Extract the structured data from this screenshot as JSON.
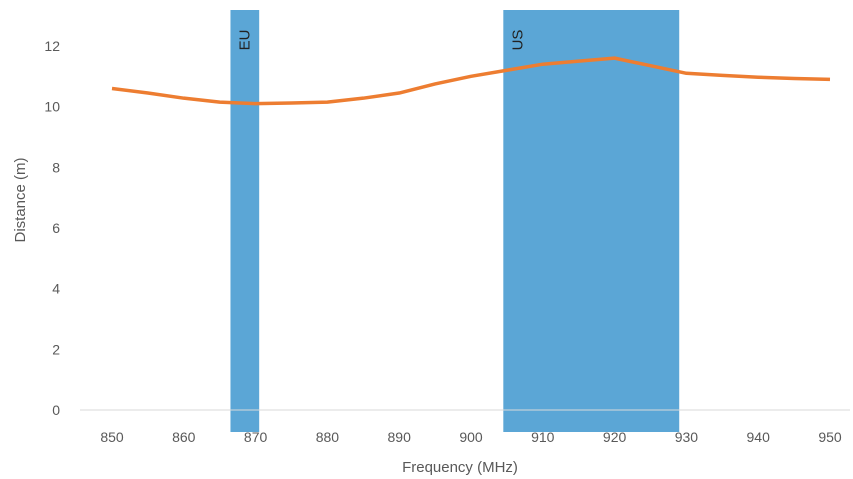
{
  "chart_data": {
    "type": "line",
    "title": "",
    "xlabel": "Frequency (MHz)",
    "ylabel": "Distance (m)",
    "xlim": [
      845,
      955
    ],
    "ylim": [
      0,
      13
    ],
    "x_ticks": [
      850,
      860,
      870,
      880,
      890,
      900,
      910,
      920,
      930,
      940,
      950
    ],
    "y_ticks": [
      0,
      2,
      4,
      6,
      8,
      10,
      12
    ],
    "grid": false,
    "legend": "none",
    "series": [
      {
        "color": "#ED7D31",
        "points": [
          [
            850,
            10.6
          ],
          [
            855,
            10.45
          ],
          [
            860,
            10.28
          ],
          [
            865,
            10.15
          ],
          [
            870,
            10.1
          ],
          [
            875,
            10.12
          ],
          [
            880,
            10.15
          ],
          [
            885,
            10.28
          ],
          [
            890,
            10.45
          ],
          [
            895,
            10.75
          ],
          [
            900,
            11.0
          ],
          [
            905,
            11.2
          ],
          [
            910,
            11.4
          ],
          [
            915,
            11.5
          ],
          [
            920,
            11.6
          ],
          [
            925,
            11.35
          ],
          [
            930,
            11.1
          ],
          [
            935,
            11.03
          ],
          [
            940,
            10.97
          ],
          [
            945,
            10.93
          ],
          [
            950,
            10.9
          ]
        ]
      }
    ],
    "bands": [
      {
        "label": "EU",
        "x_start": 866.5,
        "x_end": 870.5,
        "color": "#5BA6D6"
      },
      {
        "label": "US",
        "x_start": 904.5,
        "x_end": 929,
        "color": "#5BA6D6"
      }
    ]
  }
}
